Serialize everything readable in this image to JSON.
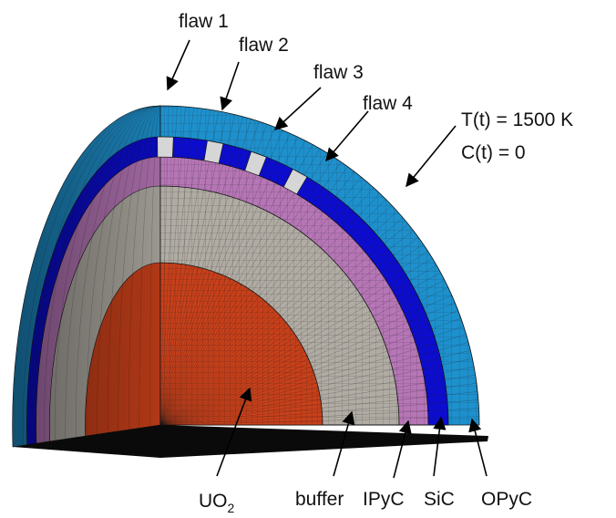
{
  "diagram": {
    "flaw_labels": [
      "flaw 1",
      "flaw 2",
      "flaw 3",
      "flaw 4"
    ],
    "boundary": {
      "temperature": "T(t) = 1500 K",
      "concentration": "C(t) = 0"
    },
    "layers": {
      "kernel": {
        "label": "UO",
        "subscript": "2",
        "color": "#c8401a"
      },
      "buffer": {
        "label": "buffer",
        "color": "#b0aca4"
      },
      "ipyc": {
        "label": "IPyC",
        "color": "#b676b6"
      },
      "sic": {
        "label": "SiC",
        "color": "#0c0cd0"
      },
      "opyc": {
        "label": "OPyC",
        "color": "#1e90cc"
      }
    },
    "flaw_color": "#d6d6d6",
    "mesh_color": "#1a1a1a",
    "base_color": "#0a0a0a"
  }
}
